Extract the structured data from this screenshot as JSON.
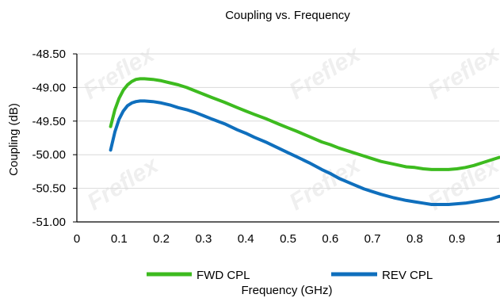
{
  "chart_data": {
    "type": "line",
    "title": "Coupling vs. Frequency",
    "xlabel": "Frequency (GHz)",
    "ylabel": "Coupling (dB)",
    "xlim": [
      0,
      1
    ],
    "ylim": [
      -51.0,
      -48.5
    ],
    "xticks": [
      "0",
      "0.1",
      "0.2",
      "0.3",
      "0.4",
      "0.5",
      "0.6",
      "0.7",
      "0.8",
      "0.9",
      "1"
    ],
    "yticks": [
      "-48.50",
      "-49.00",
      "-49.50",
      "-50.00",
      "-50.50",
      "-51.00"
    ],
    "grid": "horizontal",
    "legend": "bottom",
    "watermark": "Freflex",
    "series": [
      {
        "name": "FWD CPL",
        "color": "#3dbb1f",
        "x": [
          0.08,
          0.09,
          0.1,
          0.11,
          0.12,
          0.13,
          0.14,
          0.15,
          0.16,
          0.18,
          0.2,
          0.22,
          0.24,
          0.26,
          0.28,
          0.3,
          0.32,
          0.35,
          0.38,
          0.4,
          0.42,
          0.45,
          0.48,
          0.5,
          0.52,
          0.55,
          0.58,
          0.6,
          0.62,
          0.65,
          0.68,
          0.7,
          0.72,
          0.75,
          0.78,
          0.8,
          0.82,
          0.84,
          0.86,
          0.88,
          0.9,
          0.92,
          0.94,
          0.96,
          0.98,
          1.0
        ],
        "values": [
          -49.58,
          -49.33,
          -49.16,
          -49.04,
          -48.96,
          -48.91,
          -48.88,
          -48.87,
          -48.87,
          -48.88,
          -48.9,
          -48.93,
          -48.96,
          -49.0,
          -49.05,
          -49.1,
          -49.15,
          -49.22,
          -49.3,
          -49.35,
          -49.4,
          -49.47,
          -49.55,
          -49.6,
          -49.65,
          -49.73,
          -49.81,
          -49.85,
          -49.9,
          -49.96,
          -50.02,
          -50.06,
          -50.1,
          -50.14,
          -50.18,
          -50.19,
          -50.21,
          -50.22,
          -50.22,
          -50.22,
          -50.21,
          -50.19,
          -50.16,
          -50.12,
          -50.08,
          -50.04
        ]
      },
      {
        "name": "REV CPL",
        "color": "#0f6fbd",
        "x": [
          0.08,
          0.09,
          0.1,
          0.11,
          0.12,
          0.13,
          0.14,
          0.15,
          0.16,
          0.18,
          0.2,
          0.22,
          0.24,
          0.26,
          0.28,
          0.3,
          0.32,
          0.35,
          0.38,
          0.4,
          0.42,
          0.45,
          0.48,
          0.5,
          0.52,
          0.55,
          0.58,
          0.6,
          0.62,
          0.65,
          0.68,
          0.7,
          0.72,
          0.75,
          0.78,
          0.8,
          0.82,
          0.84,
          0.86,
          0.88,
          0.9,
          0.92,
          0.94,
          0.96,
          0.98,
          1.0
        ],
        "values": [
          -49.93,
          -49.66,
          -49.47,
          -49.35,
          -49.27,
          -49.23,
          -49.21,
          -49.2,
          -49.2,
          -49.21,
          -49.23,
          -49.26,
          -49.3,
          -49.33,
          -49.37,
          -49.42,
          -49.47,
          -49.54,
          -49.63,
          -49.68,
          -49.74,
          -49.82,
          -49.91,
          -49.97,
          -50.03,
          -50.12,
          -50.22,
          -50.28,
          -50.35,
          -50.43,
          -50.51,
          -50.55,
          -50.59,
          -50.64,
          -50.68,
          -50.7,
          -50.72,
          -50.74,
          -50.74,
          -50.74,
          -50.73,
          -50.72,
          -50.7,
          -50.68,
          -50.66,
          -50.62
        ]
      }
    ]
  }
}
